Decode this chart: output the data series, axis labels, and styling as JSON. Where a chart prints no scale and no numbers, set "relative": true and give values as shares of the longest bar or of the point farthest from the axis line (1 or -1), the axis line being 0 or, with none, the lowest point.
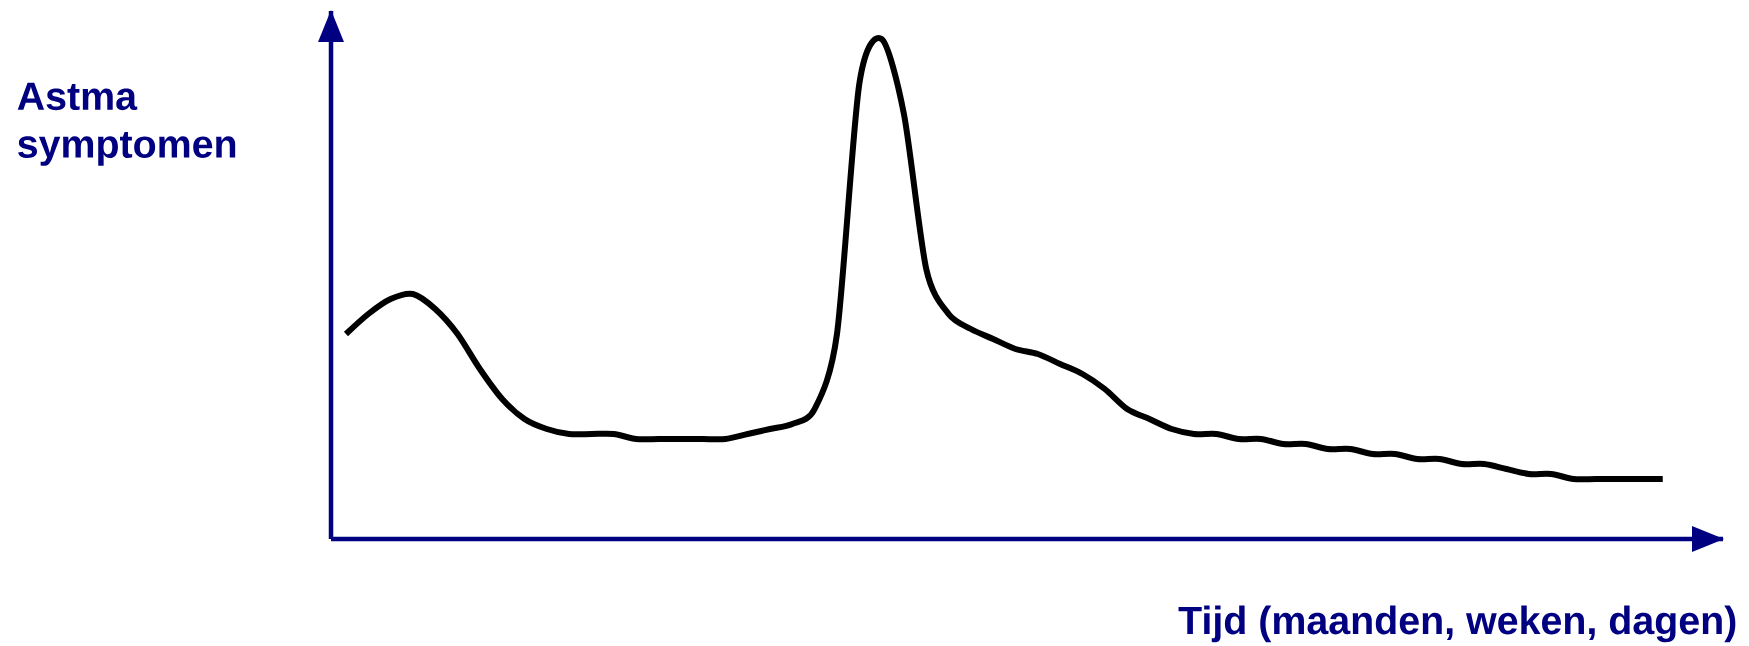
{
  "chart_data": {
    "type": "line",
    "relative": true,
    "xlabel": "Tijd (maanden, weken, dagen)",
    "ylabel": "Astma symptomen",
    "categories": [
      null,
      null,
      null,
      null,
      null,
      null,
      null,
      null,
      null,
      null,
      null,
      null,
      null,
      null,
      null,
      null,
      null,
      null,
      null,
      null,
      null,
      null,
      null,
      null,
      null,
      null,
      null,
      null,
      null,
      null,
      null,
      null,
      null,
      null,
      null,
      null,
      null,
      null,
      null,
      null,
      null,
      null,
      null,
      null,
      null,
      null,
      null,
      null,
      null,
      null,
      null,
      null,
      null,
      null,
      null,
      null,
      null,
      null,
      null,
      null
    ],
    "series": [
      {
        "color": "#000000",
        "values": [
          0.41,
          0.45,
          0.48,
          0.49,
          0.46,
          0.41,
          0.34,
          0.28,
          0.24,
          0.22,
          0.21,
          0.21,
          0.21,
          0.2,
          0.2,
          0.2,
          0.2,
          0.2,
          0.21,
          0.22,
          0.23,
          0.26,
          0.41,
          0.91,
          1.0,
          0.85,
          0.54,
          0.45,
          0.42,
          0.4,
          0.38,
          0.37,
          0.35,
          0.33,
          0.3,
          0.26,
          0.24,
          0.22,
          0.21,
          0.21,
          0.2,
          0.2,
          0.19,
          0.19,
          0.18,
          0.18,
          0.17,
          0.17,
          0.16,
          0.16,
          0.15,
          0.15,
          0.14,
          0.13,
          0.13,
          0.12,
          0.12,
          0.12,
          0.12,
          0.12
        ]
      }
    ],
    "marker": "none",
    "line_style": "solid"
  }
}
